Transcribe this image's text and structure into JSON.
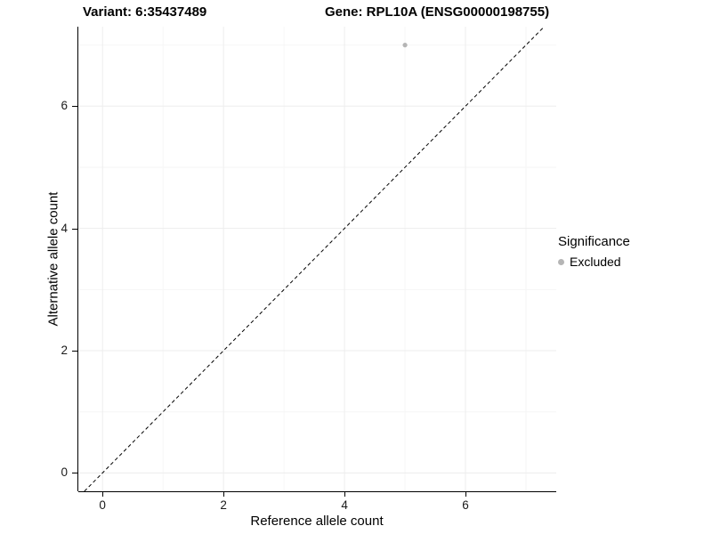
{
  "title": {
    "left": "Variant: 6:35437489",
    "right": "Gene: RPL10A (ENSG00000198755)"
  },
  "chart_data": {
    "type": "scatter",
    "title": "Variant: 6:35437489   Gene: RPL10A (ENSG00000198755)",
    "xlabel": "Reference allele count",
    "ylabel": "Alternative allele count",
    "xlim": [
      -0.4,
      7.5
    ],
    "ylim": [
      -0.3,
      7.3
    ],
    "xticks": [
      0,
      2,
      4,
      6
    ],
    "yticks": [
      0,
      2,
      4,
      6
    ],
    "xticks_minor": [
      1,
      3,
      5,
      7
    ],
    "yticks_minor": [
      1,
      3,
      5,
      7
    ],
    "grid": true,
    "reference_line": {
      "type": "identity",
      "slope": 1,
      "intercept": 0,
      "style": "dashed",
      "color": "#000000"
    },
    "series": [
      {
        "name": "Excluded",
        "color": "#b5b5b5",
        "points": [
          [
            5,
            7
          ]
        ]
      }
    ],
    "legend": {
      "title": "Significance",
      "position": "right",
      "entries": [
        {
          "label": "Excluded",
          "color": "#b5b5b5"
        }
      ]
    }
  },
  "colors": {
    "background": "#ffffff",
    "axis": "#000000",
    "grid_major": "#ededed",
    "grid_minor": "#f6f6f6",
    "point": "#b5b5b5"
  }
}
